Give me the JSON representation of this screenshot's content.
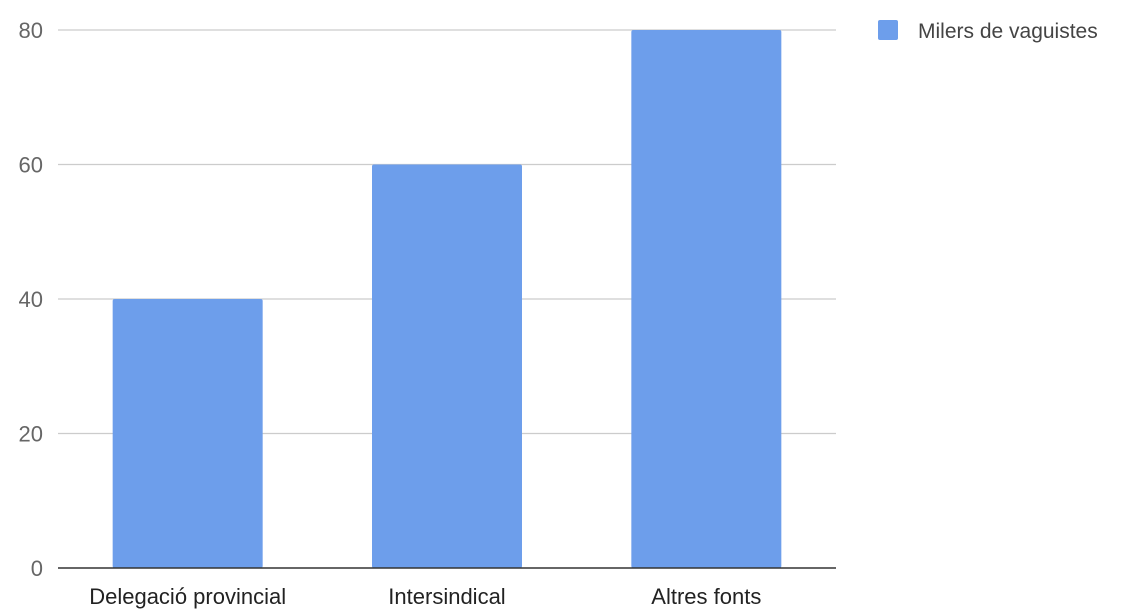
{
  "chart_data": {
    "type": "bar",
    "title": "",
    "xlabel": "",
    "ylabel": "",
    "categories": [
      "Delegació provincial",
      "Intersindical",
      "Altres fonts"
    ],
    "series": [
      {
        "name": "Milers de vaguistes",
        "values": [
          40,
          60,
          80
        ],
        "color": "#6d9eeb"
      }
    ],
    "ylim": [
      0,
      80
    ],
    "yticks": [
      0,
      20,
      40,
      60,
      80
    ],
    "grid": true,
    "legend": "top-right"
  }
}
